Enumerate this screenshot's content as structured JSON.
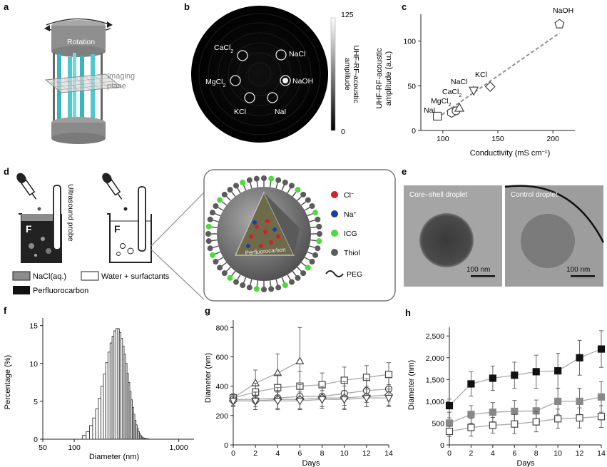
{
  "panels": {
    "a": "a",
    "b": "b",
    "c": "c",
    "d": "d",
    "e": "e",
    "f": "f",
    "g": "g",
    "h": "h"
  },
  "a": {
    "rotation": "Rotation",
    "imaging": "Imaging",
    "plane": "plane"
  },
  "b": {
    "scale_max": "125",
    "scale_min": "0",
    "scale_title_1": "UHF-RF-acoustic",
    "scale_title_2": "amplitude",
    "salts": {
      "cacl2": "CaCl",
      "nacl": "NaCl",
      "mgcl2": "MgCl",
      "naoh": "NaOH",
      "kcl": "KCl",
      "nai": "NaI"
    },
    "sub2": "2"
  },
  "c": {
    "xlabel": "Conductivity (mS cm",
    "xlabel_sup": "−1",
    "xlabel_end": ")",
    "ylabel_1": "UHF-RF-acoustic",
    "ylabel_2": "amplitude (a.u.)",
    "xticks": [
      "100",
      "150",
      "200"
    ],
    "yticks": [
      "0",
      "50",
      "100"
    ],
    "labels": {
      "naoh": "NaOH",
      "kcl": "KCl",
      "nacl": "NaCl",
      "cacl2": "CaCl",
      "mgcl2": "MgCl",
      "nai": "NaI",
      "sub2": "2"
    }
  },
  "d": {
    "probe": "Ultrasound probe",
    "legend": {
      "nacl": "NaCl(aq.)",
      "water": "Water + surfactants",
      "pfc": "Perfluorocarbon"
    },
    "droplet_core": "Perfluorocarbon",
    "key": {
      "cl": "Cl",
      "cl_sup": "−",
      "na": "Na",
      "na_sup": "+",
      "icg": "ICG",
      "thiol": "Thiol",
      "peg": "PEG"
    }
  },
  "e": {
    "left": "Core–shell droplet",
    "right": "Control droplet",
    "scale": "100 nm"
  },
  "f": {
    "ylabel": "Percentage (%)",
    "xlabel": "Diameter (nm)",
    "xticks": [
      "50",
      "100",
      "1,000"
    ],
    "yticks": [
      "0",
      "5",
      "10",
      "15"
    ]
  },
  "g": {
    "ylabel": "Diameter (nm)",
    "xlabel": "Days",
    "yticks": [
      "0",
      "200",
      "400",
      "600",
      "800"
    ],
    "xticks": [
      "0",
      "2",
      "4",
      "6",
      "8",
      "10",
      "12",
      "14"
    ]
  },
  "h": {
    "ylabel": "Diameter (nm)",
    "xlabel": "Days",
    "yticks": [
      "0",
      "500",
      "1,000",
      "1,500",
      "2,000",
      "2,500"
    ],
    "xticks": [
      "0",
      "2",
      "4",
      "6",
      "8",
      "10",
      "12",
      "14"
    ]
  },
  "chart_data": [
    {
      "panel": "c",
      "type": "scatter",
      "xlabel": "Conductivity (mS cm−1)",
      "ylabel": "UHF-RF-acoustic amplitude (a.u.)",
      "xlim": [
        80,
        220
      ],
      "ylim": [
        0,
        130
      ],
      "points": [
        {
          "name": "NaI",
          "x": 95,
          "y": 16,
          "marker": "square"
        },
        {
          "name": "MgCl2",
          "x": 108,
          "y": 20,
          "marker": "hexagon"
        },
        {
          "name": "CaCl2",
          "x": 112,
          "y": 22,
          "marker": "circle"
        },
        {
          "name": "NaCl",
          "x": 115,
          "y": 25,
          "marker": "triangle-up"
        },
        {
          "name": "KCl",
          "x": 128,
          "y": 45,
          "marker": "triangle-down"
        },
        {
          "name": "NaCl",
          "x": 143,
          "y": 49,
          "marker": "diamond"
        },
        {
          "name": "NaOH",
          "x": 206,
          "y": 119,
          "marker": "pentagon"
        }
      ],
      "fit": [
        [
          95,
          14
        ],
        [
          206,
          109
        ]
      ]
    },
    {
      "panel": "f",
      "type": "bar",
      "scale": "log",
      "xlabel": "Diameter (nm)",
      "ylabel": "Percentage (%)",
      "ylim": [
        0,
        16
      ],
      "bins": [
        120,
        130,
        140,
        150,
        160,
        170,
        180,
        190,
        200,
        210,
        220,
        230,
        240,
        250,
        260,
        270,
        280,
        290,
        300,
        310,
        320,
        330,
        340,
        350,
        360,
        370,
        380,
        390,
        400,
        410,
        420,
        430,
        440,
        450,
        460,
        470,
        480,
        490,
        500,
        510,
        520,
        530,
        540,
        550,
        560,
        570,
        580,
        590,
        600
      ],
      "values": [
        0.5,
        1.0,
        1.8,
        2.8,
        4.0,
        5.4,
        7.0,
        8.6,
        10.1,
        11.5,
        12.7,
        13.6,
        14.3,
        14.6,
        14.6,
        14.1,
        13.3,
        12.3,
        11.2,
        10.0,
        8.7,
        7.5,
        6.3,
        5.2,
        4.2,
        3.3,
        2.5,
        1.9,
        1.4,
        1.0,
        0.7,
        0.5,
        0.3,
        0.2,
        0.15,
        0.1,
        0.1,
        0.05,
        0.05,
        0.05,
        0,
        0,
        0,
        0,
        0,
        0,
        0,
        0,
        0
      ]
    },
    {
      "panel": "g",
      "type": "line",
      "xlabel": "Days",
      "ylabel": "Diameter (nm)",
      "xlim": [
        0,
        14
      ],
      "ylim": [
        0,
        850
      ],
      "x": [
        0,
        2,
        4,
        6,
        8,
        10,
        12,
        14
      ],
      "series": [
        {
          "marker": "triangle",
          "values": [
            320,
            420,
            490,
            570,
            null,
            null,
            null,
            null
          ],
          "err": [
            20,
            90,
            130,
            230,
            0,
            0,
            0,
            0
          ]
        },
        {
          "marker": "square",
          "values": [
            320,
            360,
            390,
            400,
            410,
            440,
            460,
            480
          ],
          "err": [
            30,
            60,
            90,
            100,
            80,
            90,
            80,
            80
          ]
        },
        {
          "marker": "circle",
          "values": [
            310,
            310,
            320,
            330,
            330,
            350,
            370,
            380
          ],
          "err": [
            40,
            50,
            70,
            80,
            70,
            80,
            80,
            80
          ]
        },
        {
          "marker": "diamond",
          "values": [
            300,
            300,
            310,
            310,
            320,
            320,
            330,
            340
          ],
          "err": [
            40,
            60,
            60,
            70,
            70,
            80,
            70,
            70
          ]
        },
        {
          "marker": "triangle-down",
          "values": [
            300,
            300,
            300,
            300,
            310,
            310,
            320,
            320
          ],
          "err": [
            40,
            60,
            60,
            60,
            60,
            60,
            60,
            60
          ]
        }
      ]
    },
    {
      "panel": "h",
      "type": "line",
      "xlabel": "Days",
      "ylabel": "Diameter (nm)",
      "xlim": [
        0,
        14
      ],
      "ylim": [
        0,
        2700
      ],
      "x": [
        0,
        2,
        4,
        6,
        8,
        10,
        12,
        14
      ],
      "series": [
        {
          "marker": "square-filled-black",
          "values": [
            900,
            1400,
            1530,
            1600,
            1680,
            1700,
            2000,
            2200
          ],
          "err": [
            150,
            280,
            280,
            300,
            380,
            400,
            400,
            420
          ]
        },
        {
          "marker": "square-filled-gray",
          "values": [
            500,
            700,
            750,
            770,
            780,
            1000,
            1000,
            1100
          ],
          "err": [
            120,
            200,
            220,
            250,
            250,
            300,
            300,
            350
          ]
        },
        {
          "marker": "square-open",
          "values": [
            310,
            400,
            450,
            480,
            530,
            600,
            620,
            650
          ],
          "err": [
            120,
            200,
            180,
            220,
            230,
            220,
            230,
            250
          ]
        }
      ]
    }
  ]
}
